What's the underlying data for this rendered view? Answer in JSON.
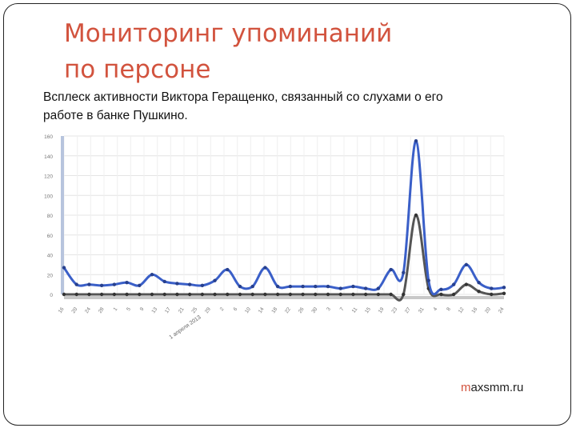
{
  "slide": {
    "title_lines": [
      "Мониторинг упоминаний",
      "по персоне"
    ],
    "caption_lines": [
      "Всплеск активности Виктора Геращенко, связанный со слухами о его",
      "работе в банке Пушкино."
    ],
    "footer_accent": "m",
    "footer_rest": "axsmm.ru"
  },
  "colors": {
    "title": "#d2533e",
    "series_blue": "#3a5fc8",
    "series_gray": "#555555",
    "y_bar": "#b7c4dd",
    "grid": "#e4e4e4"
  },
  "chart_data": {
    "type": "line",
    "title": "",
    "xlabel": "",
    "ylabel": "",
    "ylim": [
      0,
      160
    ],
    "yticks": [
      "0",
      "20",
      "40",
      "60",
      "80",
      "100",
      "120",
      "140",
      "160"
    ],
    "xticks": [
      "16",
      "20",
      "24",
      "28",
      "1",
      "5",
      "9",
      "13",
      "17",
      "21",
      "25",
      "29",
      "2",
      "6",
      "10",
      "14",
      "18",
      "22",
      "26",
      "30",
      "3",
      "7",
      "11",
      "15",
      "19",
      "23",
      "27",
      "31",
      "4",
      "8",
      "12",
      "16",
      "20",
      "24"
    ],
    "x_annotation": "1 апреля 2013",
    "grid": true,
    "series": [
      {
        "values": [
          27,
          10,
          10,
          9,
          10,
          12,
          9,
          20,
          13,
          11,
          10,
          9,
          14,
          25,
          8,
          8,
          27,
          8,
          8,
          8,
          8,
          8,
          6,
          8,
          6,
          6,
          25,
          22,
          155,
          14,
          5,
          10,
          30,
          12,
          6,
          7
        ]
      },
      {
        "values": [
          0,
          0,
          0,
          0,
          0,
          0,
          0,
          0,
          0,
          0,
          0,
          0,
          0,
          0,
          0,
          0,
          0,
          0,
          0,
          0,
          0,
          0,
          0,
          0,
          0,
          0,
          0,
          0,
          80,
          6,
          0,
          0,
          10,
          3,
          0,
          1
        ]
      }
    ]
  }
}
